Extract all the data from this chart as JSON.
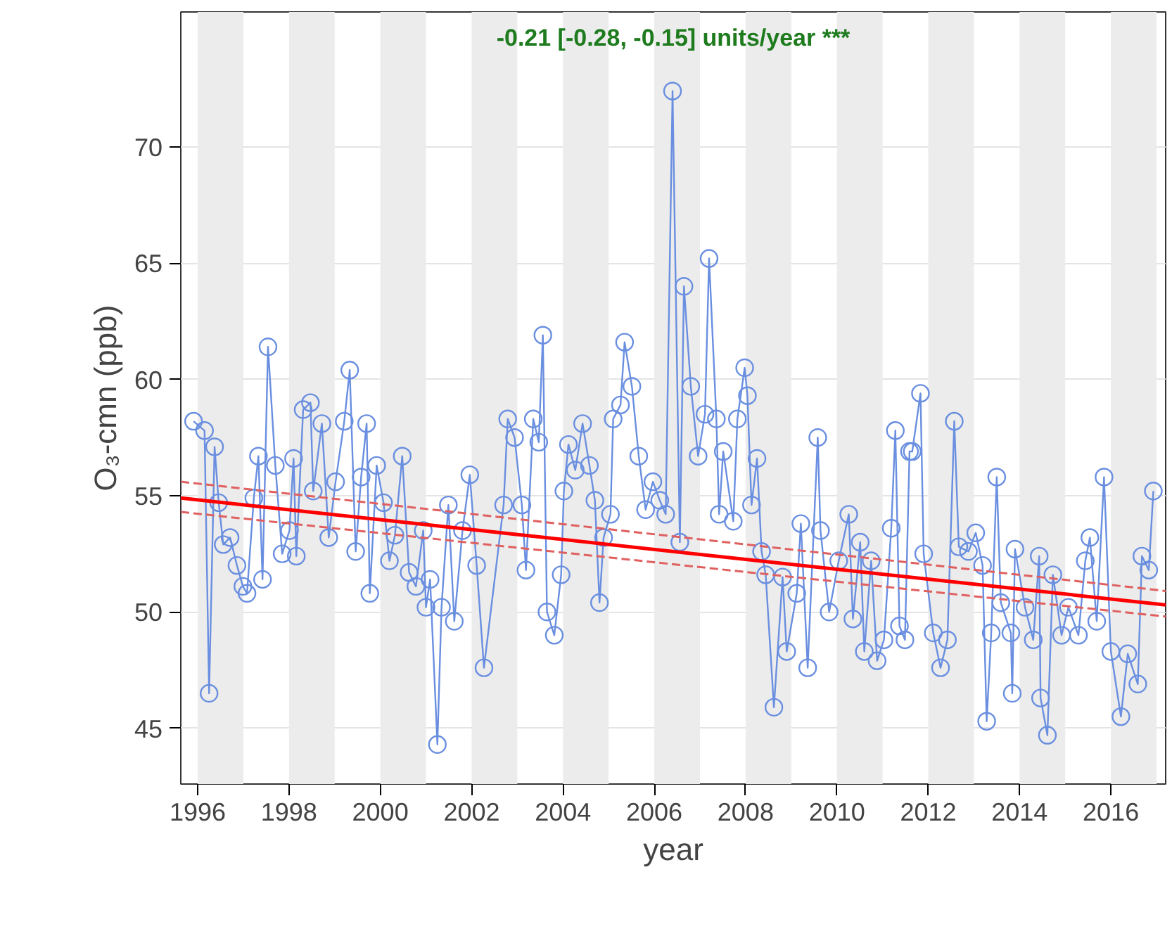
{
  "chart_data": {
    "type": "line",
    "xlabel": "year",
    "ylabel": "O₃-cmn (ppb)",
    "annotations": [
      "-0.21 [-0.28, -0.15] units/year ***"
    ],
    "xlim": [
      1995.63,
      2017.2
    ],
    "ylim": [
      42.6,
      75.8
    ],
    "xticks": [
      1996,
      1998,
      2000,
      2002,
      2004,
      2006,
      2008,
      2010,
      2012,
      2014,
      2016
    ],
    "yticks": [
      45,
      50,
      55,
      60,
      65,
      70
    ],
    "grid": "y",
    "series": [
      {
        "color": "#6a8fe0",
        "marker": "circle",
        "line_style": "solid",
        "x": [
          1995.91,
          1996.15,
          1996.25,
          1996.37,
          1996.46,
          1996.56,
          1996.71,
          1996.86,
          1996.99,
          1997.08,
          1997.23,
          1997.33,
          1997.42,
          1997.54,
          1997.7,
          1997.85,
          1998.01,
          1998.1,
          1998.16,
          1998.31,
          1998.47,
          1998.53,
          1998.72,
          1998.87,
          1999.02,
          1999.21,
          1999.33,
          1999.46,
          1999.58,
          1999.7,
          1999.77,
          1999.92,
          2000.07,
          2000.2,
          2000.32,
          2000.48,
          2000.63,
          2000.78,
          2000.94,
          2001.0,
          2001.09,
          2001.25,
          2001.34,
          2001.49,
          2001.62,
          2001.8,
          2001.96,
          2002.11,
          2002.27,
          2002.7,
          2002.79,
          2002.94,
          2003.1,
          2003.19,
          2003.35,
          2003.47,
          2003.56,
          2003.65,
          2003.81,
          2003.96,
          2004.02,
          2004.12,
          2004.27,
          2004.43,
          2004.58,
          2004.7,
          2004.8,
          2004.89,
          2005.04,
          2005.1,
          2005.26,
          2005.35,
          2005.51,
          2005.66,
          2005.81,
          2005.97,
          2006.12,
          2006.25,
          2006.4,
          2006.56,
          2006.65,
          2006.8,
          2006.96,
          2007.11,
          2007.2,
          2007.36,
          2007.42,
          2007.51,
          2007.73,
          2007.82,
          2007.98,
          2008.04,
          2008.13,
          2008.25,
          2008.35,
          2008.44,
          2008.62,
          2008.81,
          2008.9,
          2009.12,
          2009.21,
          2009.36,
          2009.58,
          2009.64,
          2009.83,
          2010.04,
          2010.26,
          2010.35,
          2010.51,
          2010.6,
          2010.75,
          2010.88,
          2011.03,
          2011.19,
          2011.28,
          2011.37,
          2011.49,
          2011.59,
          2011.65,
          2011.83,
          2011.9,
          2012.11,
          2012.27,
          2012.42,
          2012.57,
          2012.67,
          2012.88,
          2013.04,
          2013.19,
          2013.28,
          2013.38,
          2013.5,
          2013.59,
          2013.81,
          2013.84,
          2013.9,
          2014.12,
          2014.3,
          2014.43,
          2014.46,
          2014.61,
          2014.73,
          2014.92,
          2015.07,
          2015.29,
          2015.44,
          2015.54,
          2015.69,
          2015.85,
          2016.0,
          2016.22,
          2016.37,
          2016.59,
          2016.68,
          2016.83,
          2016.93
        ],
        "values": [
          58.2,
          57.8,
          46.5,
          57.1,
          54.7,
          52.9,
          53.2,
          52.0,
          51.1,
          50.8,
          54.9,
          56.7,
          51.4,
          61.4,
          56.3,
          52.5,
          53.5,
          56.6,
          52.4,
          58.7,
          59.0,
          55.2,
          58.1,
          53.2,
          55.6,
          58.2,
          60.4,
          52.6,
          55.8,
          58.1,
          50.8,
          56.3,
          54.7,
          52.2,
          53.3,
          56.7,
          51.7,
          51.1,
          53.5,
          50.2,
          51.4,
          44.3,
          50.2,
          54.6,
          49.6,
          53.5,
          55.9,
          52.0,
          47.6,
          54.6,
          58.3,
          57.5,
          54.6,
          51.8,
          58.3,
          57.3,
          61.9,
          50.0,
          49.0,
          51.6,
          55.2,
          57.2,
          56.1,
          58.1,
          56.3,
          54.8,
          50.4,
          53.2,
          54.2,
          58.3,
          58.9,
          61.6,
          59.7,
          56.7,
          54.4,
          55.6,
          54.8,
          54.2,
          72.4,
          53.0,
          64.0,
          59.7,
          56.7,
          58.5,
          65.2,
          58.3,
          54.2,
          56.9,
          53.9,
          58.3,
          60.5,
          59.3,
          54.6,
          56.6,
          52.6,
          51.6,
          45.9,
          51.5,
          48.3,
          50.8,
          53.8,
          47.6,
          57.5,
          53.5,
          50.0,
          52.2,
          54.2,
          49.7,
          53.0,
          48.3,
          52.2,
          47.9,
          48.8,
          53.6,
          57.8,
          49.4,
          48.8,
          56.9,
          56.9,
          59.4,
          52.5,
          49.1,
          47.6,
          48.8,
          58.2,
          52.8,
          52.6,
          53.4,
          52.0,
          45.3,
          49.1,
          55.8,
          50.4,
          49.1,
          46.5,
          52.7,
          50.2,
          48.8,
          52.4,
          46.3,
          44.7,
          51.6,
          49.0,
          50.2,
          49.0,
          52.2,
          53.2,
          49.6,
          55.8,
          48.3,
          45.5,
          48.2,
          46.9,
          52.4,
          51.8,
          55.2
        ]
      },
      {
        "type": "line",
        "color": "#ff0000",
        "marker": "none",
        "line_style": "solid",
        "x": [
          1995.63,
          2017.2
        ],
        "values": [
          54.9,
          50.3
        ]
      },
      {
        "type": "line",
        "color": "#e06060",
        "marker": "none",
        "line_style": "dashed",
        "x": [
          1995.63,
          2017.2
        ],
        "values": [
          55.6,
          50.9
        ]
      },
      {
        "type": "line",
        "color": "#e06060",
        "marker": "none",
        "line_style": "dashed",
        "x": [
          1995.63,
          2017.2
        ],
        "values": [
          54.3,
          49.8
        ]
      }
    ],
    "bands": [
      {
        "axis": "x",
        "from": 1996,
        "to": 1997,
        "color": "#ececec"
      },
      {
        "axis": "x",
        "from": 1998,
        "to": 1999,
        "color": "#ececec"
      },
      {
        "axis": "x",
        "from": 2000,
        "to": 2001,
        "color": "#ececec"
      },
      {
        "axis": "x",
        "from": 2002,
        "to": 2003,
        "color": "#ececec"
      },
      {
        "axis": "x",
        "from": 2004,
        "to": 2005,
        "color": "#ececec"
      },
      {
        "axis": "x",
        "from": 2006,
        "to": 2007,
        "color": "#ececec"
      },
      {
        "axis": "x",
        "from": 2008,
        "to": 2009,
        "color": "#ececec"
      },
      {
        "axis": "x",
        "from": 2010,
        "to": 2011,
        "color": "#ececec"
      },
      {
        "axis": "x",
        "from": 2012,
        "to": 2013,
        "color": "#ececec"
      },
      {
        "axis": "x",
        "from": 2014,
        "to": 2015,
        "color": "#ececec"
      },
      {
        "axis": "x",
        "from": 2016,
        "to": 2017,
        "color": "#ececec"
      }
    ]
  }
}
